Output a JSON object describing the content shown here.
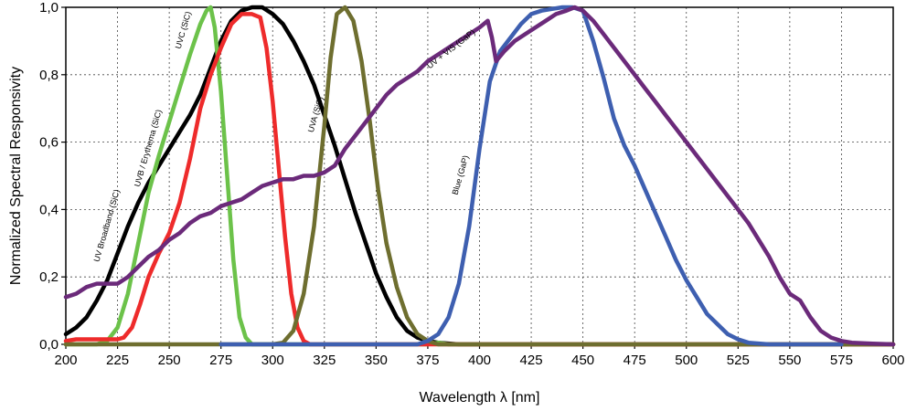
{
  "chart_data": {
    "type": "line",
    "title": "",
    "xlabel": "Wavelength λ [nm]",
    "ylabel": "Normalized Spectral Responsivity",
    "xlim": [
      200,
      600
    ],
    "ylim": [
      0,
      1.0
    ],
    "x_ticks": [
      "200",
      "225",
      "250",
      "275",
      "300",
      "325",
      "350",
      "375",
      "400",
      "425",
      "450",
      "475",
      "500",
      "525",
      "550",
      "575",
      "600"
    ],
    "y_ticks": [
      "0,0",
      "0,2",
      "0,4",
      "0,6",
      "0,8",
      "1,0"
    ],
    "grid": true,
    "legend": "none",
    "series": [
      {
        "name": "UV Broadband (SiC)",
        "color": "#000000",
        "label_at": [
          221,
          0.35
        ],
        "label_angle": -74,
        "points": [
          [
            200,
            0.03
          ],
          [
            205,
            0.05
          ],
          [
            210,
            0.08
          ],
          [
            215,
            0.13
          ],
          [
            220,
            0.19
          ],
          [
            225,
            0.27
          ],
          [
            230,
            0.35
          ],
          [
            235,
            0.42
          ],
          [
            240,
            0.48
          ],
          [
            245,
            0.53
          ],
          [
            250,
            0.58
          ],
          [
            255,
            0.63
          ],
          [
            260,
            0.68
          ],
          [
            265,
            0.74
          ],
          [
            270,
            0.82
          ],
          [
            275,
            0.9
          ],
          [
            280,
            0.96
          ],
          [
            285,
            0.99
          ],
          [
            290,
            1.0
          ],
          [
            295,
            1.0
          ],
          [
            300,
            0.98
          ],
          [
            305,
            0.95
          ],
          [
            310,
            0.9
          ],
          [
            315,
            0.84
          ],
          [
            320,
            0.77
          ],
          [
            325,
            0.68
          ],
          [
            330,
            0.59
          ],
          [
            335,
            0.49
          ],
          [
            340,
            0.39
          ],
          [
            345,
            0.3
          ],
          [
            350,
            0.21
          ],
          [
            355,
            0.14
          ],
          [
            360,
            0.08
          ],
          [
            365,
            0.04
          ],
          [
            370,
            0.02
          ],
          [
            375,
            0.01
          ],
          [
            380,
            0.005
          ],
          [
            390,
            0.0
          ],
          [
            600,
            0.0
          ]
        ]
      },
      {
        "name": "UVC (SiC)",
        "color": "#6cc24a",
        "label_at": [
          258,
          0.93
        ],
        "label_angle": -74,
        "points": [
          [
            200,
            0.0
          ],
          [
            215,
            0.0
          ],
          [
            220,
            0.01
          ],
          [
            225,
            0.05
          ],
          [
            230,
            0.15
          ],
          [
            235,
            0.3
          ],
          [
            240,
            0.45
          ],
          [
            245,
            0.56
          ],
          [
            250,
            0.66
          ],
          [
            255,
            0.76
          ],
          [
            260,
            0.86
          ],
          [
            265,
            0.95
          ],
          [
            268,
            0.99
          ],
          [
            270,
            1.0
          ],
          [
            272,
            0.94
          ],
          [
            275,
            0.75
          ],
          [
            278,
            0.5
          ],
          [
            281,
            0.25
          ],
          [
            284,
            0.08
          ],
          [
            287,
            0.02
          ],
          [
            290,
            0.0
          ],
          [
            375,
            0.0
          ],
          [
            380,
            0.005
          ],
          [
            385,
            0.0
          ],
          [
            600,
            0.0
          ]
        ]
      },
      {
        "name": "UVB / Erythema (SiC)",
        "color": "#ee2b2b",
        "label_at": [
          241,
          0.58
        ],
        "label_angle": -74,
        "points": [
          [
            200,
            0.01
          ],
          [
            205,
            0.015
          ],
          [
            215,
            0.015
          ],
          [
            225,
            0.015
          ],
          [
            228,
            0.02
          ],
          [
            232,
            0.05
          ],
          [
            236,
            0.12
          ],
          [
            240,
            0.2
          ],
          [
            245,
            0.27
          ],
          [
            250,
            0.33
          ],
          [
            255,
            0.42
          ],
          [
            260,
            0.55
          ],
          [
            265,
            0.7
          ],
          [
            270,
            0.8
          ],
          [
            275,
            0.88
          ],
          [
            280,
            0.95
          ],
          [
            285,
            0.98
          ],
          [
            290,
            0.98
          ],
          [
            294,
            0.97
          ],
          [
            297,
            0.88
          ],
          [
            300,
            0.72
          ],
          [
            303,
            0.52
          ],
          [
            306,
            0.32
          ],
          [
            309,
            0.15
          ],
          [
            312,
            0.05
          ],
          [
            315,
            0.01
          ],
          [
            318,
            0.0
          ],
          [
            600,
            0.0
          ]
        ]
      },
      {
        "name": "UVA (SiC)",
        "color": "#6e6e2f",
        "label_at": [
          322,
          0.68
        ],
        "label_angle": -74,
        "points": [
          [
            200,
            0.0
          ],
          [
            300,
            0.0
          ],
          [
            305,
            0.005
          ],
          [
            310,
            0.04
          ],
          [
            315,
            0.15
          ],
          [
            320,
            0.35
          ],
          [
            325,
            0.65
          ],
          [
            328,
            0.85
          ],
          [
            331,
            0.98
          ],
          [
            335,
            1.0
          ],
          [
            339,
            0.96
          ],
          [
            343,
            0.84
          ],
          [
            347,
            0.66
          ],
          [
            351,
            0.46
          ],
          [
            355,
            0.3
          ],
          [
            360,
            0.17
          ],
          [
            365,
            0.08
          ],
          [
            370,
            0.03
          ],
          [
            375,
            0.01
          ],
          [
            380,
            0.0
          ],
          [
            600,
            0.0
          ]
        ]
      },
      {
        "name": "Blue (GaP)",
        "color": "#3e5fb0",
        "label_at": [
          392,
          0.5
        ],
        "label_angle": -74,
        "points": [
          [
            275,
            0.0
          ],
          [
            370,
            0.0
          ],
          [
            375,
            0.01
          ],
          [
            380,
            0.03
          ],
          [
            385,
            0.08
          ],
          [
            390,
            0.18
          ],
          [
            395,
            0.35
          ],
          [
            400,
            0.58
          ],
          [
            405,
            0.78
          ],
          [
            410,
            0.87
          ],
          [
            415,
            0.91
          ],
          [
            420,
            0.95
          ],
          [
            425,
            0.98
          ],
          [
            430,
            0.99
          ],
          [
            435,
            0.995
          ],
          [
            440,
            1.0
          ],
          [
            445,
            1.0
          ],
          [
            450,
            0.99
          ],
          [
            455,
            0.9
          ],
          [
            460,
            0.79
          ],
          [
            465,
            0.67
          ],
          [
            470,
            0.59
          ],
          [
            475,
            0.53
          ],
          [
            480,
            0.46
          ],
          [
            485,
            0.39
          ],
          [
            490,
            0.32
          ],
          [
            495,
            0.25
          ],
          [
            500,
            0.19
          ],
          [
            505,
            0.14
          ],
          [
            510,
            0.09
          ],
          [
            515,
            0.06
          ],
          [
            520,
            0.03
          ],
          [
            525,
            0.015
          ],
          [
            530,
            0.005
          ],
          [
            540,
            0.0
          ],
          [
            575,
            0.0
          ]
        ]
      },
      {
        "name": "UV + VIS (GaP)",
        "color": "#6b2a7a",
        "label_at": [
          387,
          0.87
        ],
        "label_angle": -38,
        "points": [
          [
            200,
            0.14
          ],
          [
            205,
            0.15
          ],
          [
            210,
            0.17
          ],
          [
            215,
            0.18
          ],
          [
            225,
            0.18
          ],
          [
            230,
            0.2
          ],
          [
            235,
            0.23
          ],
          [
            240,
            0.26
          ],
          [
            245,
            0.28
          ],
          [
            250,
            0.31
          ],
          [
            255,
            0.33
          ],
          [
            260,
            0.36
          ],
          [
            265,
            0.38
          ],
          [
            270,
            0.39
          ],
          [
            275,
            0.41
          ],
          [
            280,
            0.42
          ],
          [
            285,
            0.43
          ],
          [
            290,
            0.45
          ],
          [
            295,
            0.47
          ],
          [
            300,
            0.48
          ],
          [
            305,
            0.49
          ],
          [
            310,
            0.49
          ],
          [
            315,
            0.5
          ],
          [
            320,
            0.5
          ],
          [
            325,
            0.51
          ],
          [
            330,
            0.53
          ],
          [
            335,
            0.58
          ],
          [
            340,
            0.62
          ],
          [
            345,
            0.66
          ],
          [
            350,
            0.7
          ],
          [
            355,
            0.74
          ],
          [
            360,
            0.77
          ],
          [
            365,
            0.79
          ],
          [
            370,
            0.81
          ],
          [
            375,
            0.84
          ],
          [
            380,
            0.86
          ],
          [
            385,
            0.88
          ],
          [
            390,
            0.9
          ],
          [
            395,
            0.92
          ],
          [
            400,
            0.94
          ],
          [
            404,
            0.96
          ],
          [
            406,
            0.91
          ],
          [
            408,
            0.84
          ],
          [
            412,
            0.87
          ],
          [
            417,
            0.9
          ],
          [
            422,
            0.92
          ],
          [
            427,
            0.94
          ],
          [
            432,
            0.96
          ],
          [
            437,
            0.98
          ],
          [
            442,
            0.99
          ],
          [
            446,
            1.0
          ],
          [
            450,
            0.99
          ],
          [
            455,
            0.96
          ],
          [
            460,
            0.92
          ],
          [
            465,
            0.88
          ],
          [
            470,
            0.84
          ],
          [
            475,
            0.8
          ],
          [
            480,
            0.76
          ],
          [
            485,
            0.72
          ],
          [
            490,
            0.68
          ],
          [
            495,
            0.64
          ],
          [
            500,
            0.6
          ],
          [
            505,
            0.56
          ],
          [
            510,
            0.52
          ],
          [
            515,
            0.48
          ],
          [
            520,
            0.44
          ],
          [
            525,
            0.4
          ],
          [
            530,
            0.36
          ],
          [
            535,
            0.31
          ],
          [
            540,
            0.26
          ],
          [
            545,
            0.2
          ],
          [
            550,
            0.15
          ],
          [
            555,
            0.13
          ],
          [
            560,
            0.08
          ],
          [
            565,
            0.04
          ],
          [
            570,
            0.02
          ],
          [
            575,
            0.01
          ],
          [
            580,
            0.005
          ],
          [
            590,
            0.002
          ],
          [
            600,
            0.0
          ]
        ]
      }
    ]
  }
}
